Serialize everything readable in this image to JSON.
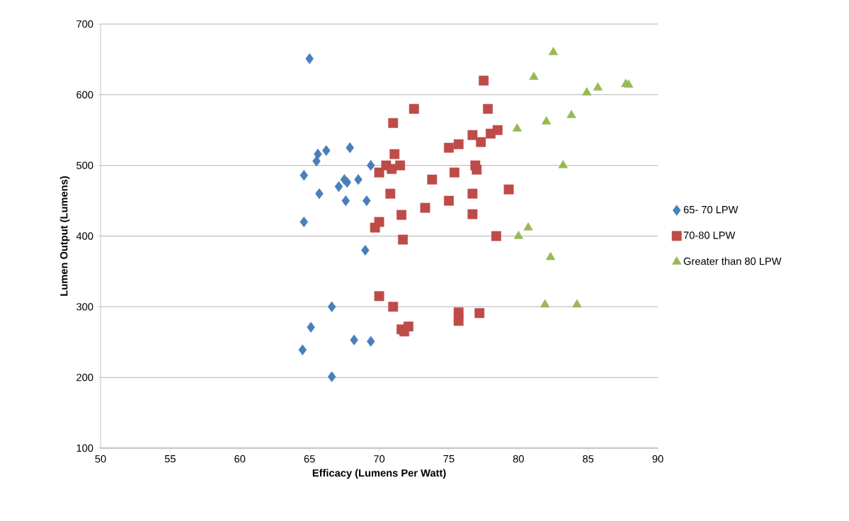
{
  "chart_data": {
    "type": "scatter",
    "xlabel": "Efficacy (Lumens Per Watt)",
    "ylabel": "Lumen Output (Lumens)",
    "xlim": [
      50,
      90
    ],
    "xticks": [
      50,
      55,
      60,
      65,
      70,
      75,
      80,
      85,
      90
    ],
    "ylim": [
      100,
      700
    ],
    "yticks": [
      100,
      200,
      300,
      400,
      500,
      600,
      700
    ],
    "grid": "y",
    "legend": "right",
    "series": [
      {
        "name": "65- 70 LPW",
        "color": "#4a7ebb",
        "marker": "diamond",
        "x": [
          65.0,
          64.6,
          64.6,
          65.6,
          65.5,
          66.2,
          65.7,
          67.9,
          69.4,
          67.1,
          67.5,
          67.7,
          68.5,
          67.6,
          69.1,
          69.0,
          66.6,
          65.1,
          64.5,
          68.2,
          69.4,
          66.6
        ],
        "values": [
          651,
          486,
          420,
          516,
          506,
          521,
          460,
          525,
          500,
          470,
          480,
          476,
          480,
          450,
          450,
          380,
          300,
          271,
          239,
          253,
          251,
          201
        ]
      },
      {
        "name": "70-80 LPW",
        "color": "#be4b48",
        "marker": "square",
        "x": [
          77.5,
          72.5,
          77.8,
          71.0,
          71.1,
          70.5,
          71.5,
          70.9,
          70.0,
          75.0,
          75.7,
          76.7,
          77.3,
          78.0,
          78.5,
          76.9,
          77.0,
          75.4,
          73.8,
          79.3,
          70.8,
          76.7,
          75.0,
          73.3,
          71.6,
          76.7,
          70.0,
          69.7,
          71.7,
          78.4,
          70.0,
          71.0,
          75.7,
          75.7,
          77.2,
          71.6,
          71.8,
          72.1
        ],
        "values": [
          620,
          580,
          580,
          560,
          516,
          500,
          500,
          495,
          490,
          525,
          530,
          543,
          533,
          545,
          550,
          500,
          494,
          490,
          480,
          466,
          460,
          460,
          450,
          440,
          430,
          431,
          420,
          412,
          395,
          400,
          315,
          300,
          292,
          280,
          291,
          268,
          265,
          272
        ]
      },
      {
        "name": "Greater than 80 LPW",
        "color": "#98b954",
        "marker": "triangle",
        "x": [
          82.5,
          81.1,
          84.9,
          85.7,
          87.7,
          87.9,
          79.9,
          82.0,
          83.8,
          83.2,
          80.7,
          80.0,
          82.3,
          81.9,
          84.2
        ],
        "values": [
          660,
          625,
          603,
          610,
          615,
          614,
          552,
          562,
          571,
          500,
          412,
          400,
          370,
          303,
          303
        ]
      }
    ]
  }
}
